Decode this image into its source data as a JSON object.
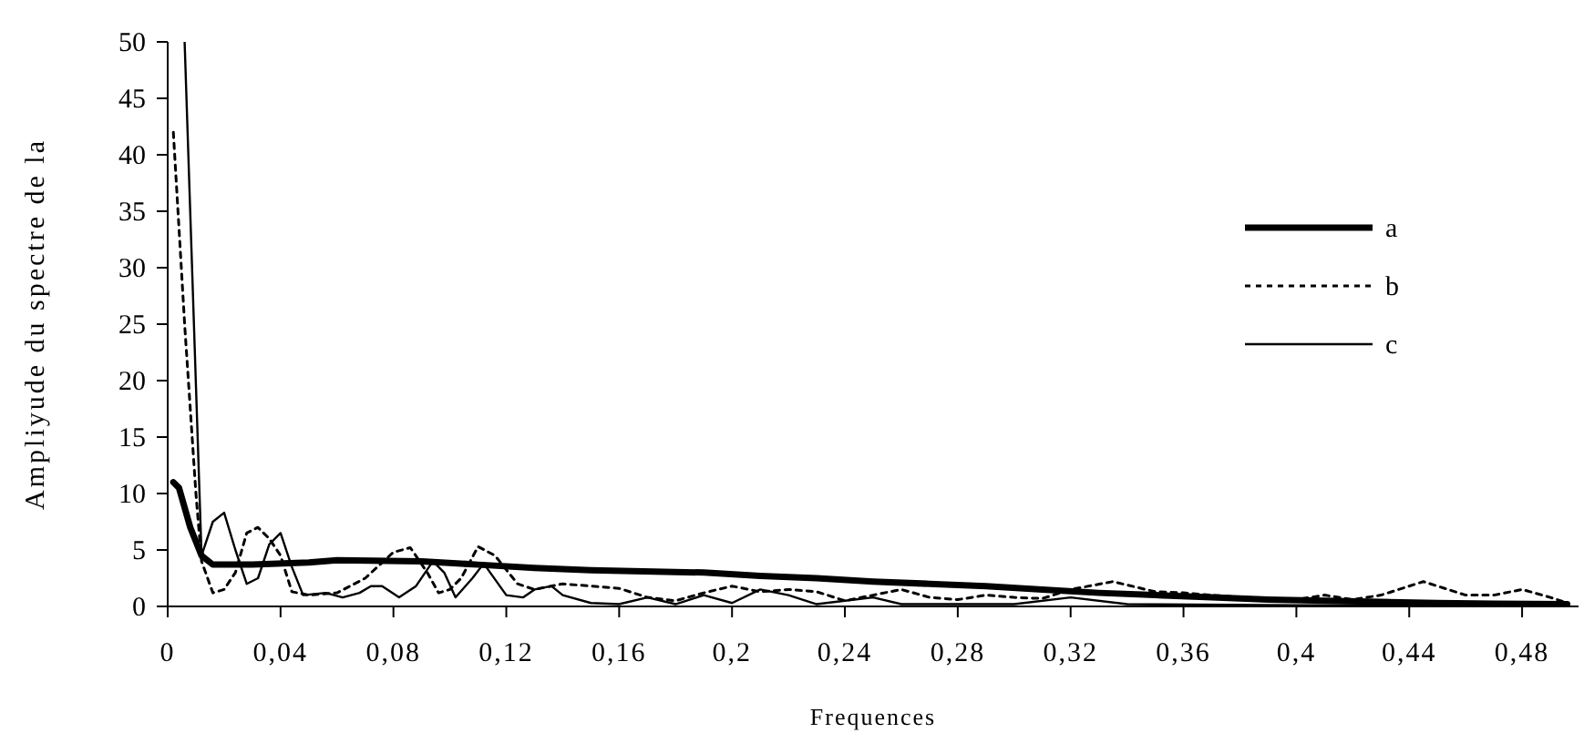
{
  "chart_data": {
    "type": "line",
    "xlabel": "Frequences",
    "ylabel": "Ampliyude du spectre de la",
    "xlim": [
      0,
      0.5
    ],
    "ylim": [
      0,
      50
    ],
    "xticks": [
      0,
      {
        "value": 0.04,
        "label": "0,04"
      },
      {
        "value": 0.08,
        "label": "0,08"
      },
      {
        "value": 0.12,
        "label": "0,12"
      },
      {
        "value": 0.16,
        "label": "0,16"
      },
      {
        "value": 0.2,
        "label": "0,2"
      },
      {
        "value": 0.24,
        "label": "0,24"
      },
      {
        "value": 0.28,
        "label": "0,28"
      },
      {
        "value": 0.32,
        "label": "0,32"
      },
      {
        "value": 0.36,
        "label": "0,36"
      },
      {
        "value": 0.4,
        "label": "0,4"
      },
      {
        "value": 0.44,
        "label": "0,44"
      },
      {
        "value": 0.48,
        "label": "0,48"
      }
    ],
    "yticks": [
      0,
      5,
      10,
      15,
      20,
      25,
      30,
      35,
      40,
      45,
      50
    ],
    "grid": false,
    "legend": "right",
    "marker": "none",
    "series": [
      {
        "name": "a",
        "color": "#000000",
        "line_style": "solid",
        "x": [
          0.002,
          0.004,
          0.008,
          0.012,
          0.016,
          0.03,
          0.05,
          0.06,
          0.09,
          0.11,
          0.13,
          0.15,
          0.19,
          0.21,
          0.23,
          0.25,
          0.27,
          0.29,
          0.31,
          0.33,
          0.35,
          0.37,
          0.39,
          0.41,
          0.43,
          0.45,
          0.47,
          0.496
        ],
        "values": [
          11,
          10.5,
          7,
          4.5,
          3.7,
          3.7,
          3.9,
          4.1,
          4.0,
          3.7,
          3.4,
          3.2,
          3.0,
          2.7,
          2.5,
          2.2,
          2.0,
          1.8,
          1.5,
          1.2,
          1.0,
          0.8,
          0.6,
          0.5,
          0.4,
          0.3,
          0.25,
          0.2
        ]
      },
      {
        "name": "b",
        "color": "#000000",
        "line_style": "dotted",
        "x": [
          0.002,
          0.006,
          0.01,
          0.012,
          0.016,
          0.02,
          0.024,
          0.028,
          0.032,
          0.036,
          0.04,
          0.044,
          0.05,
          0.06,
          0.07,
          0.08,
          0.086,
          0.092,
          0.096,
          0.1,
          0.104,
          0.11,
          0.116,
          0.124,
          0.13,
          0.14,
          0.15,
          0.16,
          0.17,
          0.18,
          0.19,
          0.2,
          0.21,
          0.22,
          0.23,
          0.24,
          0.25,
          0.26,
          0.27,
          0.28,
          0.29,
          0.3,
          0.31,
          0.32,
          0.335,
          0.35,
          0.36,
          0.38,
          0.4,
          0.41,
          0.42,
          0.43,
          0.445,
          0.46,
          0.47,
          0.48,
          0.49,
          0.496
        ],
        "values": [
          42,
          25,
          10,
          4,
          1.2,
          1.5,
          3,
          6.5,
          7,
          6,
          4.5,
          1.3,
          1.0,
          1.2,
          2.5,
          4.8,
          5.2,
          3,
          1.2,
          1.5,
          2.5,
          5.3,
          4.5,
          2,
          1.5,
          2,
          1.8,
          1.6,
          0.8,
          0.5,
          1.2,
          1.8,
          1.3,
          1.5,
          1.3,
          0.5,
          1.0,
          1.5,
          0.8,
          0.6,
          1.0,
          0.8,
          0.7,
          1.5,
          2.2,
          1.3,
          1.2,
          0.8,
          0.6,
          1.0,
          0.6,
          1.0,
          2.2,
          1.0,
          1.0,
          1.5,
          0.8,
          0.3
        ]
      },
      {
        "name": "c",
        "color": "#000000",
        "line_style": "solid",
        "x": [
          0.006,
          0.012,
          0.016,
          0.02,
          0.024,
          0.028,
          0.032,
          0.036,
          0.04,
          0.044,
          0.048,
          0.056,
          0.062,
          0.068,
          0.072,
          0.076,
          0.082,
          0.088,
          0.094,
          0.098,
          0.102,
          0.108,
          0.112,
          0.12,
          0.126,
          0.13,
          0.136,
          0.14,
          0.15,
          0.16,
          0.17,
          0.18,
          0.19,
          0.2,
          0.21,
          0.22,
          0.23,
          0.24,
          0.25,
          0.26,
          0.3,
          0.32,
          0.34,
          0.4,
          0.496
        ],
        "values": [
          50,
          4.5,
          7.5,
          8.3,
          5,
          2,
          2.5,
          5.5,
          6.5,
          3.5,
          1.0,
          1.2,
          0.8,
          1.2,
          1.8,
          1.8,
          0.8,
          1.8,
          4.0,
          3.0,
          0.8,
          2.5,
          3.8,
          1.0,
          0.8,
          1.5,
          1.8,
          1.0,
          0.3,
          0.2,
          0.8,
          0.2,
          1.0,
          0.3,
          1.5,
          1.0,
          0.2,
          0.5,
          0.8,
          0.2,
          0.2,
          0.8,
          0.2,
          0.1,
          0.1
        ]
      }
    ]
  }
}
